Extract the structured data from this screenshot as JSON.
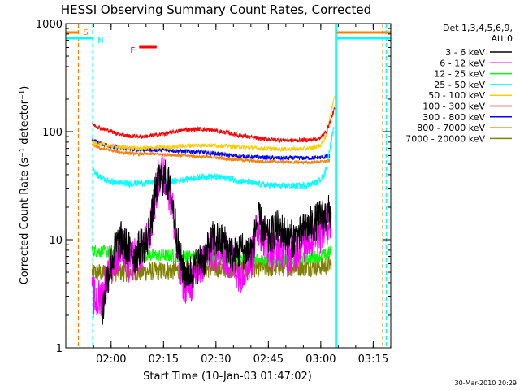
{
  "chart_data": {
    "type": "line",
    "title": "HESSI Observing Summary Count Rates, Corrected",
    "xlabel": "Start Time (10-Jan-03 01:47:02)",
    "ylabel": "Corrected Count Rate (s⁻¹ detector⁻¹)",
    "yscale": "log",
    "ylim": [
      1,
      1000
    ],
    "xlim_minutes_since_start": [
      0,
      93
    ],
    "x_ticks": [
      {
        "label": "02:00",
        "minute": 12.97
      },
      {
        "label": "02:15",
        "minute": 27.97
      },
      {
        "label": "02:30",
        "minute": 42.97
      },
      {
        "label": "02:45",
        "minute": 57.97
      },
      {
        "label": "03:00",
        "minute": 72.97
      },
      {
        "label": "03:15",
        "minute": 87.97
      }
    ],
    "y_ticks": [
      {
        "label": "1",
        "value": 1
      },
      {
        "label": "10",
        "value": 10
      },
      {
        "label": "100",
        "value": 100
      },
      {
        "label": "1000",
        "value": 1000
      }
    ],
    "legend": {
      "placement": "right",
      "header": [
        "Det 1,3,4,5,6,9,",
        "Att 0"
      ],
      "font_label": ""
    },
    "timestamp": "30-Mar-2010 20:29",
    "series": [
      {
        "name": "3 - 6 keV",
        "color": "#000000",
        "noise": 0.18,
        "points": [
          [
            10.5,
            2
          ],
          [
            11.5,
            4
          ],
          [
            13,
            6
          ],
          [
            14.5,
            9
          ],
          [
            16,
            10
          ],
          [
            18,
            8
          ],
          [
            20,
            7
          ],
          [
            21.5,
            9
          ],
          [
            23,
            9
          ],
          [
            24.5,
            15
          ],
          [
            25.5,
            25
          ],
          [
            26.5,
            33
          ],
          [
            27.5,
            38
          ],
          [
            28.5,
            37
          ],
          [
            29.5,
            32
          ],
          [
            30.5,
            22
          ],
          [
            31.5,
            13
          ],
          [
            32.5,
            7
          ],
          [
            34,
            5
          ],
          [
            36,
            5
          ],
          [
            38,
            6
          ],
          [
            40,
            7
          ],
          [
            42,
            10
          ],
          [
            44,
            10
          ],
          [
            46,
            9
          ],
          [
            48,
            7
          ],
          [
            50,
            8
          ],
          [
            52,
            8
          ],
          [
            53.5,
            8
          ],
          [
            54.5,
            14
          ],
          [
            55.5,
            15
          ],
          [
            56.5,
            12
          ],
          [
            58,
            10
          ],
          [
            59.5,
            12
          ],
          [
            61,
            13
          ],
          [
            63,
            11
          ],
          [
            65,
            10
          ],
          [
            67,
            11
          ],
          [
            69,
            13
          ],
          [
            71,
            14
          ],
          [
            73,
            16
          ],
          [
            75,
            17
          ],
          [
            76,
            19
          ]
        ]
      },
      {
        "name": "6 - 12 keV",
        "color": "#ff00ff",
        "noise": 0.2,
        "points": [
          [
            7.5,
            3
          ],
          [
            9,
            2.7
          ],
          [
            10.5,
            3
          ],
          [
            12,
            5
          ],
          [
            14,
            7
          ],
          [
            16,
            8
          ],
          [
            18,
            6
          ],
          [
            20,
            7
          ],
          [
            21.5,
            8
          ],
          [
            23,
            9
          ],
          [
            24.5,
            13
          ],
          [
            25.5,
            24
          ],
          [
            26.5,
            36
          ],
          [
            27.5,
            42
          ],
          [
            28.5,
            38
          ],
          [
            29.5,
            30
          ],
          [
            30.5,
            20
          ],
          [
            31.5,
            10
          ],
          [
            32.5,
            5
          ],
          [
            34,
            4
          ],
          [
            36,
            4
          ],
          [
            38,
            5
          ],
          [
            40,
            7
          ],
          [
            42,
            8
          ],
          [
            44,
            8
          ],
          [
            46,
            7
          ],
          [
            48,
            6
          ],
          [
            50,
            5
          ],
          [
            52,
            6
          ],
          [
            53.5,
            7
          ],
          [
            54.5,
            12
          ],
          [
            55.5,
            13
          ],
          [
            57,
            10
          ],
          [
            59,
            8
          ],
          [
            61,
            9
          ],
          [
            63,
            8
          ],
          [
            65,
            7
          ],
          [
            67,
            9
          ],
          [
            69,
            10
          ],
          [
            71,
            11
          ],
          [
            73,
            12
          ],
          [
            75,
            14
          ],
          [
            76,
            15
          ]
        ]
      },
      {
        "name": "12 - 25 keV",
        "color": "#00ff00",
        "noise": 0.06,
        "points": [
          [
            7.5,
            8
          ],
          [
            10,
            7.8
          ],
          [
            15,
            7.5
          ],
          [
            20,
            7.3
          ],
          [
            25,
            7.2
          ],
          [
            30,
            7.1
          ],
          [
            35,
            7
          ],
          [
            40,
            7
          ],
          [
            45,
            6.8
          ],
          [
            50,
            6.6
          ],
          [
            55,
            6.5
          ],
          [
            60,
            6.5
          ],
          [
            65,
            6.6
          ],
          [
            70,
            6.8
          ],
          [
            74,
            7.2
          ],
          [
            76,
            7.8
          ]
        ]
      },
      {
        "name": "25 - 50 keV",
        "color": "#00ffff",
        "noise": 0.03,
        "points": [
          [
            7.5,
            46
          ],
          [
            9,
            40
          ],
          [
            11,
            36
          ],
          [
            14,
            34
          ],
          [
            18,
            33
          ],
          [
            22,
            33.5
          ],
          [
            27,
            34
          ],
          [
            31,
            35
          ],
          [
            35,
            36.5
          ],
          [
            38,
            38
          ],
          [
            41,
            38.5
          ],
          [
            44,
            38
          ],
          [
            47,
            36.5
          ],
          [
            50,
            35
          ],
          [
            54,
            33
          ],
          [
            58,
            32
          ],
          [
            62,
            31.5
          ],
          [
            66,
            31.5
          ],
          [
            69,
            32
          ],
          [
            72,
            34
          ],
          [
            74,
            40
          ],
          [
            75,
            55
          ],
          [
            76,
            85
          ],
          [
            76.7,
            110
          ]
        ]
      },
      {
        "name": "50 - 100 keV",
        "color": "#ffcc00",
        "noise": 0.02,
        "points": [
          [
            7.5,
            80
          ],
          [
            10,
            76
          ],
          [
            15,
            72
          ],
          [
            20,
            70
          ],
          [
            25,
            71
          ],
          [
            30,
            72
          ],
          [
            35,
            74
          ],
          [
            40,
            75
          ],
          [
            45,
            74
          ],
          [
            50,
            72
          ],
          [
            55,
            70
          ],
          [
            60,
            69
          ],
          [
            65,
            69
          ],
          [
            70,
            70
          ],
          [
            73,
            75
          ],
          [
            74.5,
            90
          ],
          [
            75.5,
            130
          ],
          [
            76.5,
            190
          ],
          [
            77,
            220
          ]
        ]
      },
      {
        "name": "100 - 300 keV",
        "color": "#ff0000",
        "noise": 0.02,
        "points": [
          [
            7.5,
            118
          ],
          [
            10,
            108
          ],
          [
            14,
            98
          ],
          [
            18,
            91
          ],
          [
            22,
            90
          ],
          [
            26,
            93
          ],
          [
            30,
            98
          ],
          [
            34,
            104
          ],
          [
            38,
            106
          ],
          [
            42,
            103
          ],
          [
            46,
            98
          ],
          [
            50,
            92
          ],
          [
            55,
            87
          ],
          [
            60,
            84
          ],
          [
            65,
            83
          ],
          [
            70,
            84
          ],
          [
            73,
            88
          ],
          [
            74.5,
            100
          ],
          [
            75.5,
            120
          ],
          [
            76.5,
            150
          ],
          [
            77,
            165
          ]
        ]
      },
      {
        "name": "300 - 800 keV",
        "color": "#0000ff",
        "noise": 0.02,
        "points": [
          [
            7.5,
            85
          ],
          [
            10,
            77
          ],
          [
            14,
            72
          ],
          [
            18,
            69
          ],
          [
            22,
            68
          ],
          [
            26,
            68
          ],
          [
            30,
            67
          ],
          [
            34,
            66
          ],
          [
            38,
            65
          ],
          [
            42,
            63
          ],
          [
            46,
            61
          ],
          [
            50,
            59
          ],
          [
            55,
            58
          ],
          [
            60,
            57
          ],
          [
            65,
            57
          ],
          [
            70,
            57
          ],
          [
            74,
            58
          ],
          [
            75.5,
            60
          ]
        ]
      },
      {
        "name": "800 - 7000 keV",
        "color": "#ff7f00",
        "noise": 0.015,
        "points": [
          [
            7.5,
            75
          ],
          [
            10,
            70
          ],
          [
            14,
            66
          ],
          [
            18,
            63
          ],
          [
            22,
            62
          ],
          [
            26,
            62
          ],
          [
            30,
            61
          ],
          [
            34,
            60
          ],
          [
            38,
            59
          ],
          [
            42,
            58
          ],
          [
            46,
            56
          ],
          [
            50,
            55
          ],
          [
            55,
            53
          ],
          [
            60,
            53
          ],
          [
            65,
            52
          ],
          [
            70,
            52
          ],
          [
            74,
            53
          ],
          [
            75.5,
            54
          ]
        ]
      },
      {
        "name": "7000 - 20000 keV",
        "color": "#808000",
        "noise": 0.09,
        "points": [
          [
            7.5,
            5
          ],
          [
            10,
            5
          ],
          [
            15,
            5
          ],
          [
            20,
            5
          ],
          [
            25,
            5.1
          ],
          [
            30,
            5.2
          ],
          [
            35,
            5.3
          ],
          [
            40,
            5.4
          ],
          [
            45,
            5.4
          ],
          [
            50,
            5.5
          ],
          [
            55,
            5.5
          ],
          [
            60,
            5.5
          ],
          [
            65,
            5.6
          ],
          [
            70,
            5.6
          ],
          [
            74,
            5.7
          ],
          [
            76,
            6
          ]
        ]
      }
    ],
    "flags": [
      {
        "label": "S",
        "color": "#ff7f00",
        "segments_minutes": [
          [
            0,
            3.6
          ],
          [
            77.5,
            93
          ]
        ],
        "row": 1
      },
      {
        "label": "N",
        "color": "#00ffff",
        "segments_minutes": [
          [
            0,
            7.7
          ],
          [
            77,
            93
          ]
        ],
        "row": 2
      },
      {
        "label": "F",
        "color": "#ff0000",
        "segments_minutes": [
          [
            21,
            26
          ]
        ],
        "row": 3
      }
    ],
    "vertical_markers": [
      {
        "minute": 3.6,
        "color": "#ff7f00",
        "style": "dashed"
      },
      {
        "minute": 7.7,
        "color": "#00ffff",
        "style": "dashed"
      },
      {
        "minute": 77.2,
        "color": "#ff7f00",
        "style": "solid"
      },
      {
        "minute": 77.5,
        "color": "#00ffff",
        "style": "solid"
      },
      {
        "minute": 91.7,
        "color": "#00ffff",
        "style": "dashed"
      },
      {
        "minute": 90.7,
        "color": "#ff7f00",
        "style": "dashed"
      }
    ]
  }
}
